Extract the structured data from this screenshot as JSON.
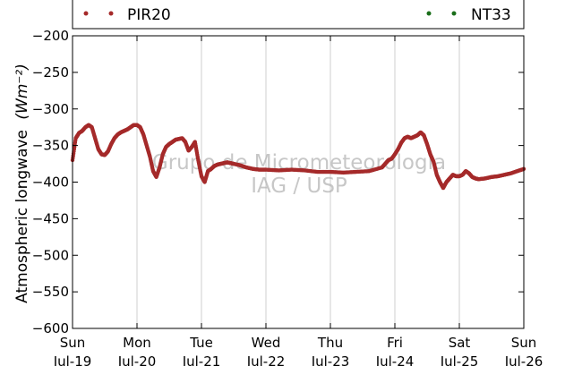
{
  "chart_data": {
    "type": "scatter",
    "ylabel": "Atmospheric longwave",
    "ylabel_units": "(Wm⁻²)",
    "ylim": [
      -600,
      -200
    ],
    "y_ticks": [
      -600,
      -550,
      -500,
      -450,
      -400,
      -350,
      -300,
      -250,
      -200
    ],
    "x_ticks": [
      {
        "day": "Sun",
        "date": "Jul-19"
      },
      {
        "day": "Mon",
        "date": "Jul-20"
      },
      {
        "day": "Tue",
        "date": "Jul-21"
      },
      {
        "day": "Wed",
        "date": "Jul-22"
      },
      {
        "day": "Thu",
        "date": "Jul-23"
      },
      {
        "day": "Fri",
        "date": "Jul-24"
      },
      {
        "day": "Sat",
        "date": "Jul-25"
      },
      {
        "day": "Sun",
        "date": "Jul-26"
      }
    ],
    "grid": "vertical",
    "legend_placement": "top",
    "watermark": [
      "Grupo de Micrometeorologia",
      "IAG / USP"
    ],
    "series": [
      {
        "name": "PIR20",
        "color": "#a52a2a",
        "x_days": [
          0.0,
          0.05,
          0.1,
          0.15,
          0.2,
          0.25,
          0.3,
          0.35,
          0.4,
          0.45,
          0.5,
          0.55,
          0.6,
          0.65,
          0.7,
          0.75,
          0.8,
          0.85,
          0.9,
          0.95,
          1.0,
          1.05,
          1.1,
          1.15,
          1.2,
          1.25,
          1.3,
          1.35,
          1.4,
          1.45,
          1.5,
          1.55,
          1.6,
          1.65,
          1.7,
          1.75,
          1.8,
          1.85,
          1.9,
          1.95,
          2.0,
          2.05,
          2.1,
          2.15,
          2.2,
          2.25,
          2.3,
          2.35,
          2.4,
          2.45,
          2.5,
          2.6,
          2.7,
          2.8,
          2.9,
          3.0,
          3.2,
          3.4,
          3.6,
          3.8,
          4.0,
          4.2,
          4.4,
          4.6,
          4.8,
          4.85,
          4.9,
          4.95,
          5.0,
          5.05,
          5.1,
          5.15,
          5.2,
          5.25,
          5.3,
          5.35,
          5.4,
          5.45,
          5.5,
          5.55,
          5.6,
          5.65,
          5.7,
          5.75,
          5.8,
          5.85,
          5.9,
          5.95,
          6.0,
          6.05,
          6.1,
          6.15,
          6.2,
          6.25,
          6.3,
          6.4,
          6.5,
          6.6,
          6.7,
          6.8,
          6.9,
          7.0
        ],
        "y": [
          -370,
          -340,
          -333,
          -330,
          -325,
          -322,
          -325,
          -340,
          -355,
          -362,
          -363,
          -358,
          -348,
          -340,
          -335,
          -332,
          -330,
          -328,
          -325,
          -322,
          -322,
          -325,
          -335,
          -350,
          -365,
          -385,
          -393,
          -380,
          -362,
          -352,
          -348,
          -345,
          -342,
          -341,
          -340,
          -345,
          -357,
          -352,
          -345,
          -370,
          -392,
          -400,
          -385,
          -382,
          -378,
          -376,
          -375,
          -374,
          -373,
          -374,
          -375,
          -377,
          -380,
          -382,
          -383,
          -383,
          -384,
          -383,
          -384,
          -386,
          -386,
          -387,
          -386,
          -385,
          -380,
          -375,
          -370,
          -368,
          -362,
          -355,
          -346,
          -340,
          -338,
          -340,
          -338,
          -336,
          -332,
          -336,
          -348,
          -362,
          -372,
          -390,
          -400,
          -408,
          -400,
          -395,
          -390,
          -392,
          -392,
          -390,
          -385,
          -388,
          -393,
          -395,
          -396,
          -395,
          -393,
          -392,
          -390,
          -388,
          -385,
          -382
        ]
      },
      {
        "name": "NT33",
        "color": "#1a6e1a",
        "x_days": [],
        "y": []
      }
    ]
  }
}
